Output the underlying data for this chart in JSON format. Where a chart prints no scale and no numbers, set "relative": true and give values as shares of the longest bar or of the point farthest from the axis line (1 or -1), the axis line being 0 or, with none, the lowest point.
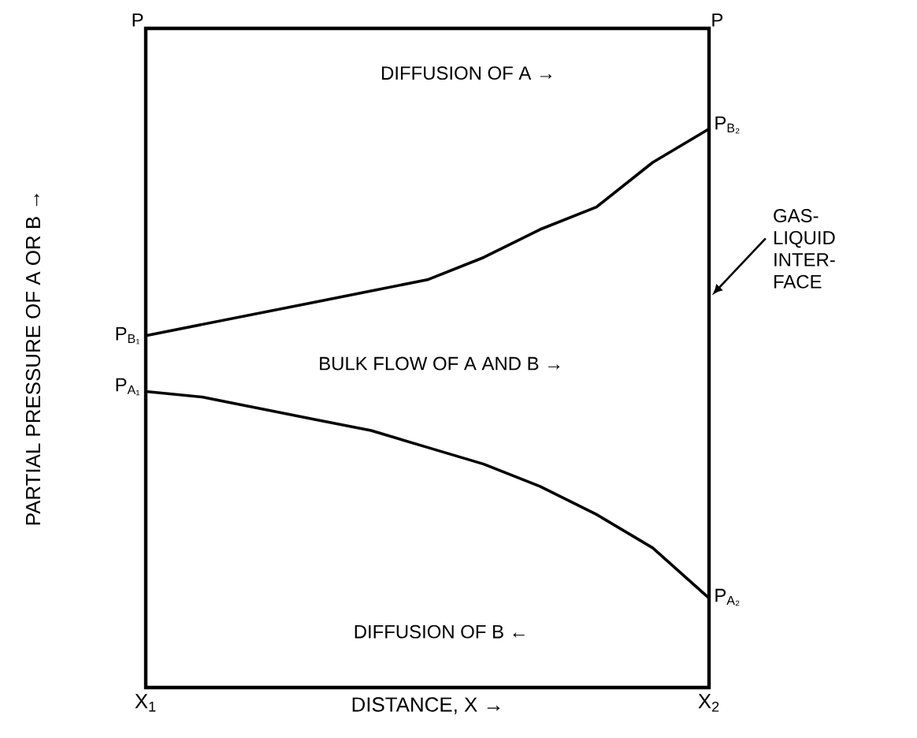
{
  "chart_data": {
    "type": "line",
    "relative": true,
    "xlabel": "DISTANCE, X →",
    "ylabel": "PARTIAL PRESSURE OF A OR B →",
    "categories": [
      "X$_{1}$",
      null,
      null,
      null,
      null,
      null,
      null,
      null,
      null,
      null,
      "X$_{2}$"
    ],
    "series": [
      {
        "color": "#000000",
        "values": [
          0.63,
          0.65,
          0.67,
          0.69,
          0.71,
          0.73,
          0.77,
          0.82,
          0.86,
          0.94,
          1
        ]
      },
      {
        "color": "#000000",
        "values": [
          0.53,
          0.52,
          0.5,
          0.48,
          0.46,
          0.43,
          0.4,
          0.36,
          0.31,
          0.25,
          0.16
        ]
      }
    ],
    "annotations": [
      "P",
      "P",
      "DIFFUSION OF A →",
      "BULK FLOW OF A AND B →",
      "DIFFUSION OF B ←",
      "P$_{B₁}$",
      "P$_{A₁}$",
      "P$_{B₂}$",
      "P$_{A₂}$",
      "GAS- LIQUID INTER- FACE"
    ]
  }
}
